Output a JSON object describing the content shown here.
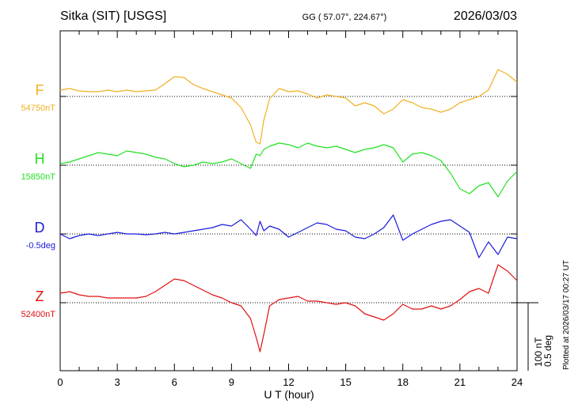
{
  "header": {
    "station": "Sitka (SIT)  [USGS]",
    "coords": "GG ( 57.07°, 224.67°)",
    "date": "2026/03/03"
  },
  "footer": {
    "plotted": "Plotted at 2026/03/17 00:27 UT"
  },
  "chart_data": {
    "type": "line",
    "title": "",
    "xlabel": "U T (hour)",
    "ylabel": "",
    "xlim": [
      0,
      24
    ],
    "x_ticks": [
      "0",
      "3",
      "6",
      "9",
      "12",
      "15",
      "18",
      "21",
      "24"
    ],
    "scale_bar": {
      "label_1": "100 nT",
      "label_2": "0.5 deg"
    },
    "grid": "dotted baselines per component",
    "series": [
      {
        "name": "F",
        "baseline_label": "54750nT",
        "color": "#f0b020",
        "x": [
          0,
          0.5,
          1,
          1.5,
          2,
          2.5,
          3,
          3.5,
          4,
          4.5,
          5,
          5.5,
          6,
          6.5,
          7,
          7.5,
          8,
          8.5,
          9,
          9.5,
          10,
          10.3,
          10.5,
          10.7,
          11,
          11.5,
          12,
          12.5,
          13,
          13.5,
          14,
          14.5,
          15,
          15.5,
          16,
          16.5,
          17,
          17.5,
          18,
          18.5,
          19,
          19.5,
          20,
          20.5,
          21,
          21.5,
          22,
          22.5,
          23,
          23.5,
          24
        ],
        "y": [
          8,
          10,
          7,
          6,
          6,
          8,
          6,
          8,
          6,
          7,
          8,
          16,
          25,
          24,
          15,
          10,
          6,
          2,
          -2,
          -14,
          -36,
          -58,
          -60,
          -30,
          -3,
          10,
          6,
          7,
          3,
          -2,
          2,
          0,
          -2,
          -12,
          -8,
          -12,
          -22,
          -16,
          -4,
          -8,
          -14,
          -16,
          -20,
          -16,
          -8,
          -4,
          0,
          8,
          34,
          28,
          18
        ]
      },
      {
        "name": "H",
        "baseline_label": "15850nT",
        "color": "#22e022",
        "x": [
          0,
          0.5,
          1,
          1.5,
          2,
          2.5,
          3,
          3.5,
          4,
          4.5,
          5,
          5.5,
          6,
          6.5,
          7,
          7.5,
          8,
          8.5,
          9,
          9.5,
          10,
          10.3,
          10.5,
          10.7,
          11,
          11.5,
          12,
          12.5,
          13,
          13.5,
          14,
          14.5,
          15,
          15.5,
          16,
          16.5,
          17,
          17.5,
          18,
          18.5,
          19,
          19.5,
          20,
          20.5,
          21,
          21.5,
          22,
          22.5,
          23,
          23.5,
          24
        ],
        "y": [
          2,
          4,
          8,
          12,
          16,
          14,
          12,
          18,
          16,
          14,
          10,
          8,
          2,
          -2,
          0,
          4,
          2,
          4,
          8,
          2,
          -4,
          14,
          12,
          20,
          24,
          28,
          26,
          22,
          28,
          24,
          22,
          24,
          20,
          16,
          20,
          22,
          26,
          22,
          4,
          14,
          16,
          12,
          6,
          -10,
          -30,
          -36,
          -26,
          -22,
          -40,
          -20,
          -8
        ]
      },
      {
        "name": "D",
        "baseline_label": "-0.5deg",
        "color": "#1a1adc",
        "x": [
          0,
          0.5,
          1,
          1.5,
          2,
          2.5,
          3,
          3.5,
          4,
          4.5,
          5,
          5.5,
          6,
          6.5,
          7,
          7.5,
          8,
          8.5,
          9,
          9.5,
          10,
          10.3,
          10.5,
          10.7,
          11,
          11.5,
          12,
          12.5,
          13,
          13.5,
          14,
          14.5,
          15,
          15.5,
          16,
          16.5,
          17,
          17.5,
          18,
          18.5,
          19,
          19.5,
          20,
          20.5,
          21,
          21.5,
          22,
          22.5,
          23,
          23.5,
          24
        ],
        "y": [
          0,
          -6,
          -2,
          0,
          -2,
          0,
          2,
          0,
          0,
          -1,
          0,
          2,
          0,
          2,
          4,
          6,
          8,
          12,
          10,
          18,
          6,
          -2,
          16,
          4,
          10,
          6,
          -4,
          2,
          8,
          14,
          12,
          6,
          4,
          -4,
          -6,
          0,
          8,
          24,
          -8,
          0,
          6,
          12,
          16,
          18,
          10,
          2,
          -30,
          -10,
          -26,
          -4,
          -6
        ]
      },
      {
        "name": "Z",
        "baseline_label": "52400nT",
        "color": "#e01010",
        "x": [
          0,
          0.5,
          1,
          1.5,
          2,
          2.5,
          3,
          3.5,
          4,
          4.5,
          5,
          5.5,
          6,
          6.5,
          7,
          7.5,
          8,
          8.5,
          9,
          9.5,
          10,
          10.3,
          10.5,
          10.7,
          11,
          11.5,
          12,
          12.5,
          13,
          13.5,
          14,
          14.5,
          15,
          15.5,
          16,
          16.5,
          17,
          17.5,
          18,
          18.5,
          19,
          19.5,
          20,
          20.5,
          21,
          21.5,
          22,
          22.5,
          23,
          23.5,
          24
        ],
        "y": [
          12,
          14,
          10,
          8,
          8,
          6,
          6,
          6,
          6,
          8,
          14,
          22,
          30,
          28,
          22,
          16,
          10,
          6,
          0,
          -4,
          -20,
          -44,
          -62,
          -40,
          -4,
          4,
          6,
          8,
          2,
          2,
          0,
          -2,
          0,
          -4,
          -14,
          -18,
          -22,
          -14,
          -2,
          -8,
          -8,
          -4,
          -8,
          -4,
          4,
          14,
          18,
          12,
          48,
          40,
          28
        ]
      }
    ]
  }
}
